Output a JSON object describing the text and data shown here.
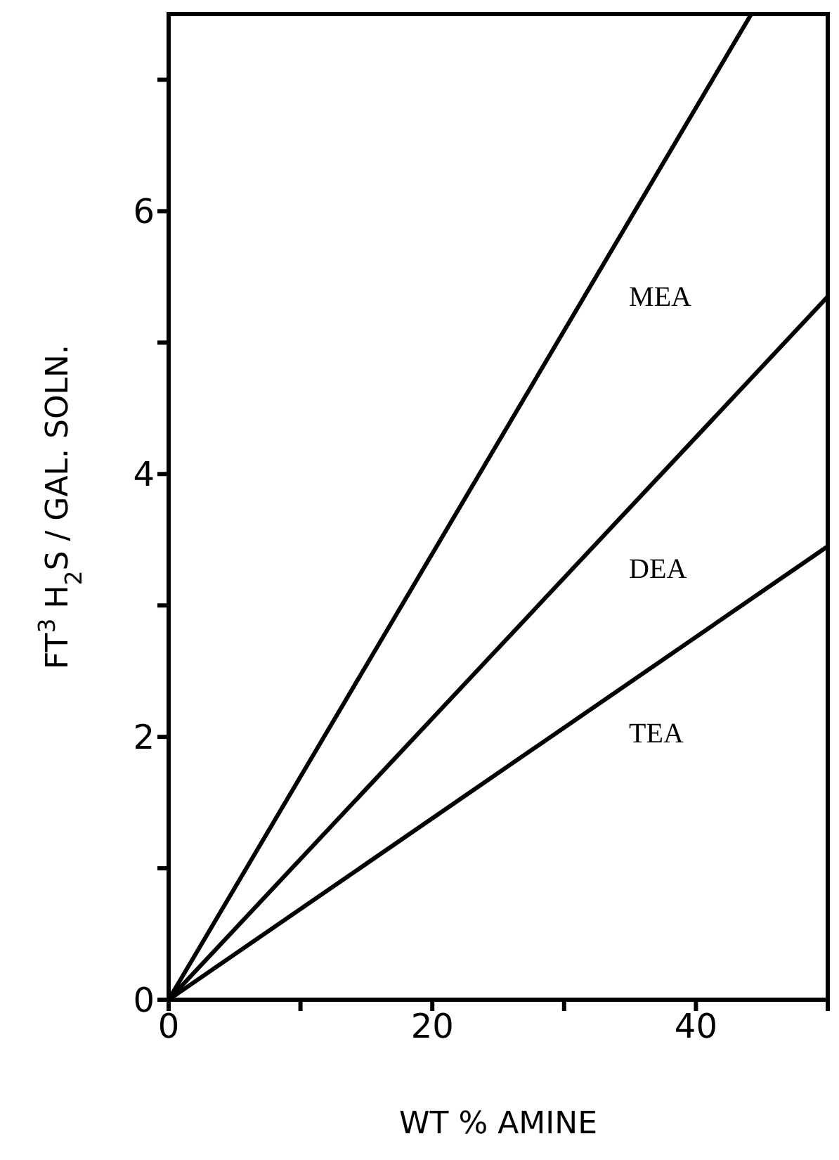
{
  "chart_data": {
    "type": "line",
    "xlabel": "WT % AMINE",
    "ylabel": "FT$^{3}$ H$_{2}$S / GAL. SOLN.",
    "series": [
      {
        "name": "MEA",
        "color": "#000000",
        "x": [
          0,
          44.2
        ],
        "values": [
          0,
          7.5
        ]
      },
      {
        "name": "DEA",
        "color": "#000000",
        "x": [
          0,
          50
        ],
        "values": [
          0,
          5.35
        ]
      },
      {
        "name": "TEA",
        "color": "#000000",
        "x": [
          0,
          50
        ],
        "values": [
          0,
          3.45
        ]
      }
    ],
    "xlim": [
      0,
      50
    ],
    "xticks": [
      0,
      {
        "value": 10,
        "label": null
      },
      20,
      {
        "value": 30,
        "label": null
      },
      40,
      {
        "value": 50,
        "label": null
      }
    ],
    "ylim": [
      0,
      7.5
    ],
    "yticks": [
      0,
      {
        "value": 1,
        "label": null
      },
      2,
      {
        "value": 3,
        "label": null
      },
      4,
      {
        "value": 5,
        "label": null
      },
      6,
      {
        "value": 7,
        "label": null
      }
    ],
    "grid": false,
    "legend": false,
    "marker": "none",
    "line_style": "solid"
  }
}
